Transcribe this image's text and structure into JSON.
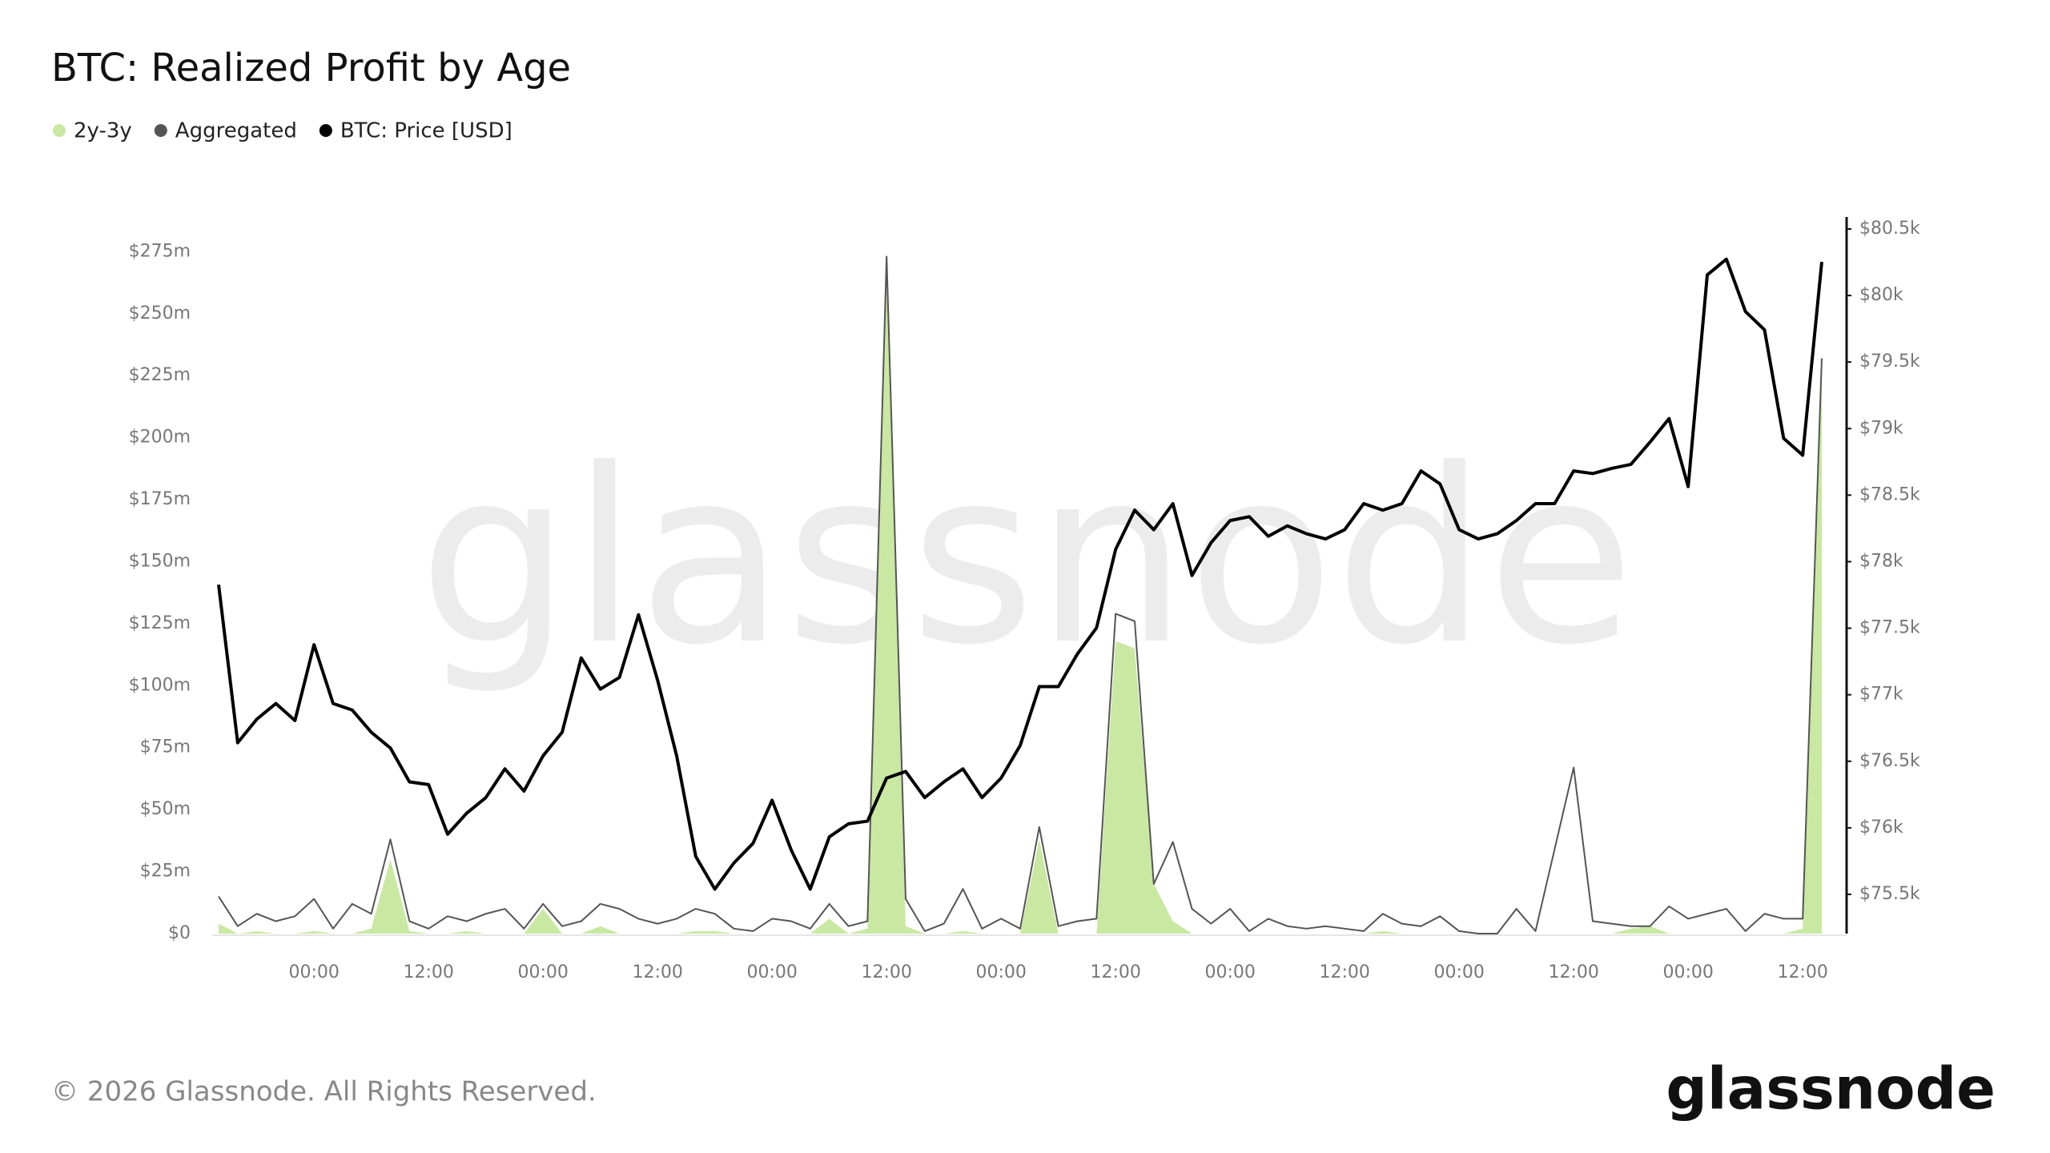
{
  "chart_data": {
    "type": "line",
    "title": "BTC: Realized Profit by Age",
    "watermark": "glassnode",
    "footer": "© 2026 Glassnode. All Rights Reserved.",
    "logo": "glassnode",
    "categories": [
      null,
      null,
      null,
      null,
      null,
      "00:00",
      null,
      null,
      null,
      null,
      null,
      "12:00",
      null,
      null,
      null,
      null,
      null,
      "00:00",
      null,
      null,
      null,
      null,
      null,
      "12:00",
      null,
      null,
      null,
      null,
      null,
      "00:00",
      null,
      null,
      null,
      null,
      null,
      "12:00",
      null,
      null,
      null,
      null,
      null,
      "00:00",
      null,
      null,
      null,
      null,
      null,
      "12:00",
      null,
      null,
      null,
      null,
      null,
      "00:00",
      null,
      null,
      null,
      null,
      null,
      "12:00",
      null,
      null,
      null,
      null,
      null,
      "00:00",
      null,
      null,
      null,
      null,
      null,
      "12:00",
      null,
      null,
      null,
      null,
      null,
      "00:00",
      null,
      null,
      null,
      null,
      null,
      "12:00",
      null
    ],
    "series": [
      {
        "name": "2y-3y",
        "type": "area",
        "color": "#c9e8a2",
        "values": [
          4,
          0,
          1,
          0,
          0,
          1,
          0,
          0,
          2,
          30,
          1,
          0,
          0,
          1,
          0,
          0,
          0,
          10,
          0,
          0,
          3,
          0,
          0,
          0,
          0,
          1,
          1,
          0,
          0,
          0,
          0,
          0,
          6,
          0,
          2,
          265,
          3,
          0,
          0,
          1,
          0,
          0,
          0,
          38,
          0,
          0,
          0,
          118,
          115,
          20,
          5,
          0,
          0,
          0,
          0,
          0,
          0,
          0,
          0,
          0,
          0,
          1,
          0,
          0,
          0,
          0,
          0,
          0,
          0,
          0,
          0,
          0,
          0,
          0,
          2,
          3,
          0,
          0,
          0,
          0,
          0,
          0,
          0,
          2,
          225
        ]
      },
      {
        "name": "Aggregated",
        "type": "line",
        "color": "#555555",
        "values": [
          15,
          3,
          8,
          5,
          7,
          14,
          2,
          12,
          8,
          38,
          5,
          2,
          7,
          5,
          8,
          10,
          2,
          12,
          3,
          5,
          12,
          10,
          6,
          4,
          6,
          10,
          8,
          2,
          1,
          6,
          5,
          2,
          12,
          3,
          5,
          273,
          14,
          1,
          4,
          18,
          2,
          6,
          2,
          43,
          3,
          5,
          6,
          129,
          126,
          20,
          37,
          10,
          4,
          10,
          1,
          6,
          3,
          2,
          3,
          2,
          1,
          8,
          4,
          3,
          7,
          1,
          0,
          0,
          10,
          1,
          34,
          67,
          5,
          4,
          3,
          3,
          11,
          6,
          8,
          10,
          1,
          8,
          6,
          6,
          232
        ]
      },
      {
        "name": "BTC: Price [USD]",
        "type": "line",
        "axis": "y2",
        "color": "#000000",
        "values": [
          77827,
          76639,
          76816,
          76934,
          76806,
          77376,
          76934,
          76885,
          76718,
          76600,
          76345,
          76325,
          75952,
          76110,
          76227,
          76443,
          76276,
          76541,
          76718,
          77277,
          77042,
          77130,
          77601,
          77110,
          76541,
          75785,
          75539,
          75736,
          75883,
          76207,
          75834,
          75539,
          75932,
          76030,
          76050,
          76374,
          76423,
          76227,
          76345,
          76443,
          76227,
          76374,
          76619,
          77061,
          77061,
          77307,
          77503,
          78092,
          78387,
          78240,
          78436,
          77896,
          78142,
          78309,
          78338,
          78191,
          78269,
          78210,
          78171,
          78240,
          78436,
          78387,
          78436,
          78682,
          78584,
          78240,
          78171,
          78210,
          78309,
          78436,
          78436,
          78682,
          78662,
          78701,
          78731,
          78898,
          79075,
          78564,
          80155,
          80273,
          79880,
          79742,
          78927,
          78800,
          80253
        ]
      }
    ],
    "ylim": [
      0,
      289
    ],
    "yticks": [
      {
        "value": 0,
        "label": "$0"
      },
      {
        "value": 25,
        "label": "$25m"
      },
      {
        "value": 50,
        "label": "$50m"
      },
      {
        "value": 75,
        "label": "$75m"
      },
      {
        "value": 100,
        "label": "$100m"
      },
      {
        "value": 125,
        "label": "$125m"
      },
      {
        "value": 150,
        "label": "$150m"
      },
      {
        "value": 175,
        "label": "$175m"
      },
      {
        "value": 200,
        "label": "$200m"
      },
      {
        "value": 225,
        "label": "$225m"
      },
      {
        "value": 250,
        "label": "$250m"
      },
      {
        "value": 275,
        "label": "$275m"
      }
    ],
    "y2lim": [
      75205,
      80590
    ],
    "y2ticks": [
      {
        "value": 75500,
        "label": "$75.5k"
      },
      {
        "value": 76000,
        "label": "$76k"
      },
      {
        "value": 76500,
        "label": "$76.5k"
      },
      {
        "value": 77000,
        "label": "$77k"
      },
      {
        "value": 77500,
        "label": "$77.5k"
      },
      {
        "value": 78000,
        "label": "$78k"
      },
      {
        "value": 78500,
        "label": "$78.5k"
      },
      {
        "value": 79000,
        "label": "$79k"
      },
      {
        "value": 79500,
        "label": "$79.5k"
      },
      {
        "value": 80000,
        "label": "$80k"
      },
      {
        "value": 80500,
        "label": "$80.5k"
      }
    ],
    "grid": false
  }
}
